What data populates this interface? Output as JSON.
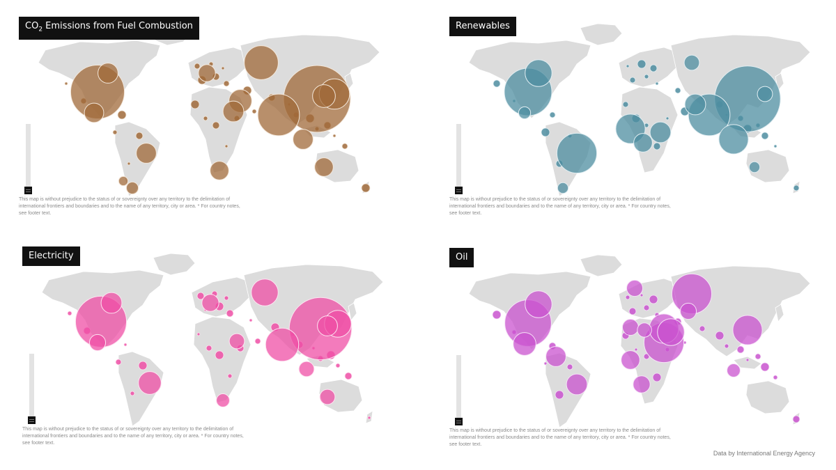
{
  "panels": [
    {
      "id": "co2",
      "title_main": "CO",
      "title_sub": "2",
      "title_rest": " Emissions from Fuel Combustion",
      "color": "#a06a3a",
      "stroke": "#f3e7da",
      "bubbles": [
        {
          "region": "United States",
          "value": 100
        },
        {
          "region": "Canada",
          "value": 14
        },
        {
          "region": "Mexico",
          "value": 13
        },
        {
          "region": "China",
          "value": 155
        },
        {
          "region": "India",
          "value": 60
        },
        {
          "region": "Russia",
          "value": 40
        },
        {
          "region": "Japan",
          "value": 32
        },
        {
          "region": "Korea",
          "value": 18
        },
        {
          "region": "Iran",
          "value": 18
        },
        {
          "region": "Saudi Arabia",
          "value": 15
        },
        {
          "region": "Indonesia",
          "value": 14
        },
        {
          "region": "Brazil",
          "value": 14
        },
        {
          "region": "Australia",
          "value": 12
        },
        {
          "region": "South Africa",
          "value": 12
        },
        {
          "region": "Germany",
          "value": 10
        },
        {
          "region": "Argentina",
          "value": 5
        },
        {
          "region": "Chile",
          "value": 3
        }
      ]
    },
    {
      "id": "renew",
      "title_main": "Renewables",
      "color": "#4d8da0",
      "stroke": "#e2eef2",
      "bubbles": [
        {
          "region": "China",
          "value": 150
        },
        {
          "region": "India",
          "value": 60
        },
        {
          "region": "United States",
          "value": 78
        },
        {
          "region": "Brazil",
          "value": 55
        },
        {
          "region": "Canada",
          "value": 25
        },
        {
          "region": "Indonesia",
          "value": 30
        },
        {
          "region": "Nigeria",
          "value": 30
        },
        {
          "region": "Ethiopia",
          "value": 15
        },
        {
          "region": "Congo",
          "value": 12
        },
        {
          "region": "Pakistan",
          "value": 15
        },
        {
          "region": "Russia",
          "value": 8
        },
        {
          "region": "Japan",
          "value": 8
        },
        {
          "region": "Argentina",
          "value": 4
        },
        {
          "region": "Australia",
          "value": 4
        },
        {
          "region": "Mexico",
          "value": 5
        }
      ]
    },
    {
      "id": "elec",
      "title_main": "Electricity",
      "color": "#ef4fa6",
      "stroke": "#fde4f1",
      "bubbles": [
        {
          "region": "United States",
          "value": 90
        },
        {
          "region": "China",
          "value": 135
        },
        {
          "region": "Canada",
          "value": 15
        },
        {
          "region": "Japan",
          "value": 25
        },
        {
          "region": "Russia",
          "value": 25
        },
        {
          "region": "India",
          "value": 38
        },
        {
          "region": "Brazil",
          "value": 18
        },
        {
          "region": "Germany",
          "value": 10
        },
        {
          "region": "Korea",
          "value": 14
        },
        {
          "region": "Indonesia",
          "value": 8
        },
        {
          "region": "Australia",
          "value": 8
        },
        {
          "region": "South Africa",
          "value": 6
        },
        {
          "region": "Mexico",
          "value": 9
        },
        {
          "region": "Saudi Arabia",
          "value": 8
        }
      ]
    },
    {
      "id": "oil",
      "title_main": "Oil",
      "color": "#c953cf",
      "stroke": "#f6e3f7",
      "bubbles": [
        {
          "region": "United States",
          "value": 75
        },
        {
          "region": "Russia",
          "value": 55
        },
        {
          "region": "Saudi Arabia",
          "value": 55
        },
        {
          "region": "Canada",
          "value": 25
        },
        {
          "region": "China",
          "value": 30
        },
        {
          "region": "Iraq",
          "value": 30
        },
        {
          "region": "Iran",
          "value": 25
        },
        {
          "region": "Mexico",
          "value": 18
        },
        {
          "region": "Venezuela",
          "value": 14
        },
        {
          "region": "Brazil",
          "value": 15
        },
        {
          "region": "Nigeria",
          "value": 12
        },
        {
          "region": "Angola",
          "value": 10
        },
        {
          "region": "Algeria",
          "value": 9
        },
        {
          "region": "Norway",
          "value": 9
        },
        {
          "region": "Kazakhstan",
          "value": 9
        },
        {
          "region": "Indonesia",
          "value": 6
        },
        {
          "region": "Libya",
          "value": 7
        }
      ]
    }
  ],
  "disclaimer": "This map is without prejudice to the status of or sovereignty over any territory to the delimitation of international frontiers and boundaries and to the name of any territory, city or area. * For country notes, see footer text.",
  "credit": "Data by International Energy Agency",
  "land_color": "#dcdcdc"
}
